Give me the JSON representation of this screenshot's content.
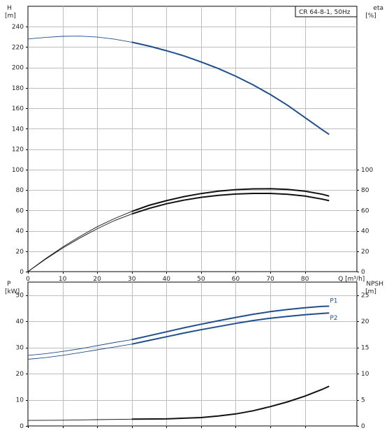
{
  "chart_data": [
    {
      "type": "line",
      "panel": "head-efficiency",
      "title": "CR 64-8-1, 50Hz",
      "xlabel": "Q [m³/h]",
      "xlim": [
        0,
        95
      ],
      "xticks": [
        0,
        10,
        20,
        30,
        40,
        50,
        60,
        70,
        80
      ],
      "xticklabels": [
        "0",
        "10",
        "20",
        "30",
        "40",
        "50",
        "60",
        "70",
        "80"
      ],
      "x_unit_label": "Q [m³/h]",
      "y_left": {
        "label_line1": "H",
        "label_line2": "[m]",
        "lim": [
          0,
          260
        ],
        "ticks": [
          0,
          20,
          40,
          60,
          80,
          100,
          120,
          140,
          160,
          180,
          200,
          220,
          240
        ],
        "ticklabels": [
          "0",
          "20",
          "40",
          "60",
          "80",
          "100",
          "120",
          "140",
          "160",
          "180",
          "200",
          "220",
          "240"
        ]
      },
      "y_right": {
        "label_line1": "eta",
        "label_line2": "[%]",
        "lim": [
          0,
          260
        ],
        "ticks": [
          0,
          20,
          40,
          60,
          80,
          100
        ],
        "ticklabels": [
          "0",
          "20",
          "40",
          "60",
          "80",
          "100"
        ]
      },
      "series": [
        {
          "axis": "left",
          "color": "#1f4e8c",
          "thin_until": 30,
          "points": [
            [
              0,
              228
            ],
            [
              5,
              229.5
            ],
            [
              10,
              230.6
            ],
            [
              15,
              230.8
            ],
            [
              20,
              229.8
            ],
            [
              25,
              227.8
            ],
            [
              30,
              224.8
            ],
            [
              35,
              221
            ],
            [
              40,
              216.5
            ],
            [
              45,
              211.5
            ],
            [
              50,
              205.5
            ],
            [
              55,
              199
            ],
            [
              60,
              191.5
            ],
            [
              65,
              183
            ],
            [
              70,
              173.5
            ],
            [
              75,
              163
            ],
            [
              80,
              151
            ],
            [
              85,
              139
            ],
            [
              87,
              134.5
            ]
          ]
        },
        {
          "axis": "right",
          "color": "#111111",
          "thin_until": 30,
          "points": [
            [
              0,
              0
            ],
            [
              5,
              12
            ],
            [
              10,
              23
            ],
            [
              15,
              33
            ],
            [
              20,
              42
            ],
            [
              25,
              50
            ],
            [
              30,
              56.5
            ],
            [
              35,
              62
            ],
            [
              40,
              66.5
            ],
            [
              45,
              70
            ],
            [
              50,
              72.8
            ],
            [
              55,
              74.8
            ],
            [
              60,
              76
            ],
            [
              65,
              76.6
            ],
            [
              70,
              76.6
            ],
            [
              75,
              75.8
            ],
            [
              80,
              74
            ],
            [
              85,
              71
            ],
            [
              87,
              69.5
            ]
          ]
        },
        {
          "axis": "right",
          "color": "#111111",
          "thin_until": 30,
          "points": [
            [
              0,
              0
            ],
            [
              5,
              12.5
            ],
            [
              10,
              24
            ],
            [
              15,
              34.5
            ],
            [
              20,
              44
            ],
            [
              25,
              52
            ],
            [
              30,
              59
            ],
            [
              35,
              65
            ],
            [
              40,
              69.5
            ],
            [
              45,
              73.5
            ],
            [
              50,
              76.5
            ],
            [
              55,
              78.8
            ],
            [
              60,
              80.3
            ],
            [
              65,
              81.1
            ],
            [
              70,
              81.2
            ],
            [
              75,
              80.5
            ],
            [
              80,
              78.8
            ],
            [
              85,
              75.8
            ],
            [
              87,
              74
            ]
          ]
        }
      ]
    },
    {
      "type": "line",
      "panel": "power-npsh",
      "xlim": [
        0,
        95
      ],
      "xticks": [
        0,
        10,
        20,
        30,
        40,
        50,
        60,
        70,
        80
      ],
      "y_left": {
        "label_line1": "P",
        "label_line2": "[kW]",
        "lim": [
          0,
          55
        ],
        "ticks": [
          0,
          10,
          20,
          30,
          40,
          50
        ],
        "ticklabels": [
          "0",
          "10",
          "20",
          "30",
          "40",
          "50"
        ]
      },
      "y_right": {
        "label_line1": "NPSH",
        "label_line2": "[m]",
        "lim": [
          0,
          27.5
        ],
        "ticks": [
          0,
          5,
          10,
          15,
          20,
          25
        ],
        "ticklabels": [
          "0",
          "5",
          "10",
          "15",
          "20",
          "25"
        ]
      },
      "series": [
        {
          "name": "P1",
          "axis": "left",
          "color": "#1f4e8c",
          "thin_until": 30,
          "points": [
            [
              0,
              27
            ],
            [
              5,
              27.6
            ],
            [
              10,
              28.5
            ],
            [
              15,
              29.5
            ],
            [
              20,
              30.7
            ],
            [
              25,
              31.9
            ],
            [
              30,
              33
            ],
            [
              35,
              34.5
            ],
            [
              40,
              36
            ],
            [
              45,
              37.5
            ],
            [
              50,
              38.9
            ],
            [
              55,
              40.2
            ],
            [
              60,
              41.5
            ],
            [
              65,
              42.7
            ],
            [
              70,
              43.7
            ],
            [
              75,
              44.5
            ],
            [
              80,
              45.2
            ],
            [
              85,
              45.7
            ],
            [
              87,
              45.8
            ]
          ]
        },
        {
          "name": "P2",
          "axis": "left",
          "color": "#1f4e8c",
          "thin_until": 30,
          "points": [
            [
              0,
              25.5
            ],
            [
              5,
              26.1
            ],
            [
              10,
              27
            ],
            [
              15,
              28
            ],
            [
              20,
              29.1
            ],
            [
              25,
              30.2
            ],
            [
              30,
              31.3
            ],
            [
              35,
              32.7
            ],
            [
              40,
              34.1
            ],
            [
              45,
              35.5
            ],
            [
              50,
              36.8
            ],
            [
              55,
              38
            ],
            [
              60,
              39.2
            ],
            [
              65,
              40.3
            ],
            [
              70,
              41.2
            ],
            [
              75,
              41.9
            ],
            [
              80,
              42.5
            ],
            [
              85,
              43
            ],
            [
              87,
              43.2
            ]
          ]
        },
        {
          "axis": "right",
          "color": "#111111",
          "thin_until": 30,
          "points": [
            [
              0,
              1.05
            ],
            [
              10,
              1.1
            ],
            [
              20,
              1.2
            ],
            [
              30,
              1.3
            ],
            [
              40,
              1.35
            ],
            [
              50,
              1.6
            ],
            [
              55,
              1.9
            ],
            [
              60,
              2.3
            ],
            [
              65,
              2.9
            ],
            [
              70,
              3.7
            ],
            [
              75,
              4.6
            ],
            [
              80,
              5.7
            ],
            [
              85,
              7
            ],
            [
              87,
              7.6
            ]
          ]
        }
      ]
    }
  ]
}
